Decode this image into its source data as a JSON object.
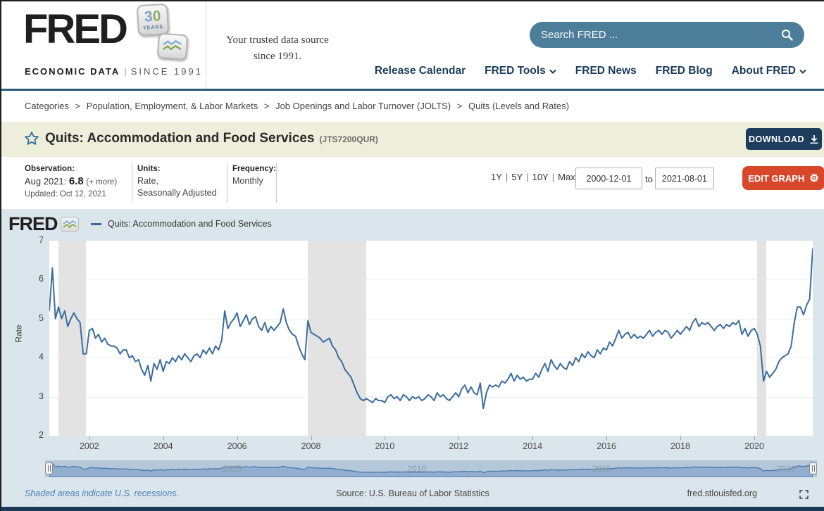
{
  "header": {
    "logo": {
      "title": "FRED",
      "badge_number": "30",
      "badge_years": "YEARS",
      "eco": "ECONOMIC DATA",
      "bar": "|",
      "since": "SINCE 1991"
    },
    "tagline_line1": "Your trusted data source",
    "tagline_line2": "since 1991.",
    "search": {
      "placeholder": "Search FRED ..."
    },
    "nav": {
      "items": [
        {
          "label": "Release Calendar"
        },
        {
          "label": "FRED Tools"
        },
        {
          "label": "FRED News"
        },
        {
          "label": "FRED Blog"
        },
        {
          "label": "About FRED"
        }
      ]
    }
  },
  "breadcrumb": {
    "separator": ">",
    "items": [
      "Categories",
      "Population, Employment, & Labor Markets",
      "Job Openings and Labor Turnover (JOLTS)",
      "Quits (Levels and Rates)"
    ]
  },
  "series_header": {
    "title": "Quits: Accommodation and Food Services",
    "series_id": "(JTS7200QUR)",
    "download_label": "DOWNLOAD"
  },
  "meta": {
    "observation_label": "Observation:",
    "observation_date": "Aug 2021:",
    "observation_value": "6.8",
    "observation_more": "(+ more)",
    "updated": "Updated: Oct 12, 2021",
    "units_label": "Units:",
    "units_line1": "Rate,",
    "units_line2": "Seasonally Adjusted",
    "frequency_label": "Frequency:",
    "frequency_value": "Monthly"
  },
  "range_controls": {
    "presets": [
      "1Y",
      "5Y",
      "10Y",
      "Max"
    ],
    "separator": "|",
    "start_date": "2000-12-01",
    "to_label": "to",
    "end_date": "2021-08-01",
    "edit_graph_label": "EDIT GRAPH"
  },
  "graph": {
    "watermark": "FRED",
    "legend_label": "Quits: Accommodation and Food Services",
    "footer_note": "Shaded areas indicate U.S. recessions.",
    "source": "Source: U.S. Bureau of Labor Statistics",
    "site": "fred.stlouisfed.org"
  },
  "colors": {
    "accent_teal": "#4d7e99",
    "nav_blue": "#1b3c5c",
    "download_navy": "#1e3d5c",
    "edit_orange": "#d9472b",
    "chart_bg": "#dbe5ec",
    "recession_gray": "#e3e3e3",
    "mini_fill": "#8fadd0",
    "mini_stroke": "#4f7cae"
  },
  "chart_data": {
    "type": "line",
    "title": "Quits: Accommodation and Food Services",
    "ylabel": "Rate",
    "ylim": [
      2,
      7
    ],
    "yticks": [
      2,
      3,
      4,
      5,
      6,
      7
    ],
    "xticks": [
      2002,
      2004,
      2006,
      2008,
      2010,
      2012,
      2014,
      2016,
      2018,
      2020
    ],
    "mini_years": [
      2005,
      2010,
      2015,
      2020
    ],
    "start": "2000-12",
    "end": "2021-08",
    "frequency": "monthly",
    "line_color": "#3a6d9e",
    "grid": true,
    "legend_position": "top",
    "recessions": [
      [
        "2001-03",
        "2001-11"
      ],
      [
        "2007-12",
        "2009-06"
      ],
      [
        "2020-02",
        "2020-04"
      ]
    ],
    "values": [
      5.2,
      6.3,
      5.0,
      5.3,
      5.0,
      5.2,
      4.8,
      5.0,
      5.15,
      5.0,
      4.9,
      4.1,
      4.1,
      4.7,
      4.75,
      4.5,
      4.6,
      4.4,
      4.5,
      4.35,
      4.3,
      4.3,
      4.25,
      4.1,
      4.2,
      4.2,
      4.0,
      4.05,
      3.9,
      3.95,
      3.7,
      3.55,
      3.8,
      3.4,
      3.85,
      3.7,
      3.95,
      3.65,
      3.9,
      3.85,
      4.0,
      3.9,
      4.05,
      3.95,
      4.1,
      4.0,
      3.9,
      4.05,
      4.1,
      4.0,
      4.2,
      4.1,
      4.25,
      4.1,
      4.3,
      4.2,
      4.45,
      5.2,
      4.75,
      4.9,
      5.0,
      5.15,
      4.8,
      4.95,
      5.1,
      4.85,
      5.0,
      5.05,
      4.8,
      4.7,
      4.9,
      4.65,
      4.8,
      4.7,
      4.8,
      4.9,
      5.25,
      4.9,
      4.7,
      4.6,
      4.55,
      4.3,
      4.1,
      3.95,
      4.95,
      4.65,
      4.6,
      4.55,
      4.5,
      4.4,
      4.45,
      4.5,
      4.3,
      4.2,
      4.0,
      3.9,
      3.7,
      3.6,
      3.5,
      3.3,
      3.1,
      2.95,
      2.9,
      2.95,
      2.9,
      2.85,
      2.95,
      2.9,
      2.9,
      2.85,
      3.0,
      3.05,
      2.95,
      3.0,
      2.9,
      3.05,
      3.0,
      2.9,
      3.0,
      2.95,
      3.0,
      2.9,
      2.95,
      3.05,
      3.0,
      2.9,
      3.1,
      3.0,
      3.05,
      2.95,
      2.9,
      3.0,
      3.1,
      3.0,
      3.2,
      3.3,
      3.1,
      3.25,
      3.1,
      3.05,
      3.35,
      2.7,
      3.1,
      3.3,
      3.25,
      3.3,
      3.25,
      3.4,
      3.35,
      3.45,
      3.6,
      3.4,
      3.55,
      3.45,
      3.5,
      3.4,
      3.45,
      3.45,
      3.6,
      3.5,
      3.7,
      3.85,
      3.65,
      3.95,
      3.8,
      3.7,
      3.85,
      3.75,
      3.7,
      3.9,
      3.8,
      4.0,
      3.9,
      4.1,
      4.0,
      4.15,
      4.05,
      4.0,
      4.2,
      4.1,
      4.25,
      4.2,
      4.4,
      4.3,
      4.5,
      4.7,
      4.5,
      4.6,
      4.65,
      4.5,
      4.6,
      4.5,
      4.55,
      4.5,
      4.6,
      4.7,
      4.55,
      4.65,
      4.7,
      4.6,
      4.7,
      4.65,
      4.5,
      4.6,
      4.7,
      4.6,
      4.7,
      4.8,
      4.7,
      4.9,
      5.0,
      4.8,
      4.9,
      4.85,
      4.9,
      4.8,
      4.7,
      4.8,
      4.85,
      4.75,
      4.85,
      4.8,
      4.9,
      4.85,
      4.95,
      4.6,
      4.75,
      4.55,
      4.7,
      4.75,
      4.6,
      4.3,
      3.4,
      3.65,
      3.5,
      3.6,
      3.7,
      3.9,
      4.0,
      4.05,
      4.1,
      4.3,
      4.9,
      5.3,
      5.3,
      5.1,
      5.35,
      5.5,
      6.8
    ]
  }
}
